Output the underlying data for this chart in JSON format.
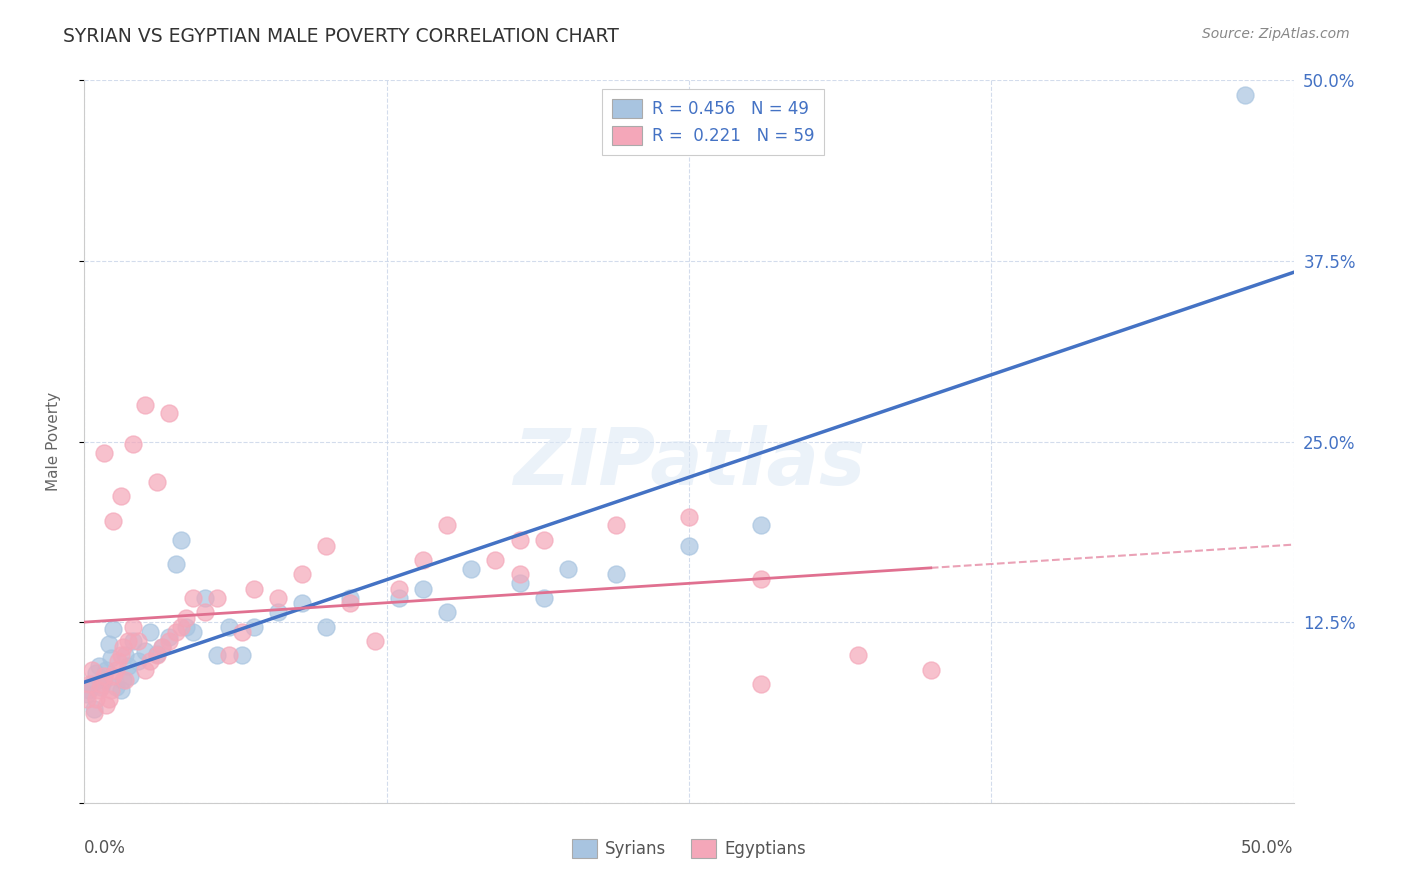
{
  "title": "SYRIAN VS EGYPTIAN MALE POVERTY CORRELATION CHART",
  "source": "Source: ZipAtlas.com",
  "ylabel": "Male Poverty",
  "xlim": [
    0.0,
    0.5
  ],
  "ylim": [
    0.0,
    0.5
  ],
  "syrian_color": "#a8c4e0",
  "egyptian_color": "#f4a7b9",
  "syrian_line_color": "#4472c4",
  "egyptian_line_color": "#e07090",
  "syrian_R": 0.456,
  "syrian_N": 49,
  "egyptian_R": 0.221,
  "egyptian_N": 59,
  "background_color": "#ffffff",
  "grid_color": "#c8d4e8",
  "watermark": "ZIPatlas",
  "syrians_x": [
    0.001,
    0.002,
    0.003,
    0.004,
    0.005,
    0.006,
    0.007,
    0.008,
    0.009,
    0.01,
    0.011,
    0.012,
    0.013,
    0.015,
    0.016,
    0.017,
    0.018,
    0.019,
    0.02,
    0.022,
    0.025,
    0.027,
    0.03,
    0.032,
    0.035,
    0.038,
    0.04,
    0.042,
    0.045,
    0.05,
    0.055,
    0.06,
    0.065,
    0.07,
    0.08,
    0.09,
    0.1,
    0.11,
    0.13,
    0.14,
    0.15,
    0.16,
    0.18,
    0.19,
    0.2,
    0.22,
    0.25,
    0.28,
    0.48
  ],
  "syrians_y": [
    0.075,
    0.078,
    0.082,
    0.065,
    0.09,
    0.095,
    0.08,
    0.085,
    0.092,
    0.11,
    0.1,
    0.12,
    0.08,
    0.078,
    0.085,
    0.102,
    0.095,
    0.088,
    0.112,
    0.098,
    0.105,
    0.118,
    0.103,
    0.108,
    0.115,
    0.165,
    0.182,
    0.122,
    0.118,
    0.142,
    0.102,
    0.122,
    0.102,
    0.122,
    0.132,
    0.138,
    0.122,
    0.142,
    0.142,
    0.148,
    0.132,
    0.162,
    0.152,
    0.142,
    0.162,
    0.158,
    0.178,
    0.192,
    0.49
  ],
  "egyptians_x": [
    0.001,
    0.002,
    0.003,
    0.004,
    0.005,
    0.006,
    0.007,
    0.008,
    0.009,
    0.01,
    0.011,
    0.012,
    0.013,
    0.014,
    0.015,
    0.016,
    0.017,
    0.018,
    0.02,
    0.022,
    0.025,
    0.027,
    0.03,
    0.032,
    0.035,
    0.038,
    0.04,
    0.042,
    0.045,
    0.05,
    0.055,
    0.06,
    0.065,
    0.07,
    0.08,
    0.09,
    0.1,
    0.11,
    0.12,
    0.13,
    0.14,
    0.15,
    0.17,
    0.19,
    0.22,
    0.25,
    0.28,
    0.32,
    0.35,
    0.18,
    0.008,
    0.012,
    0.015,
    0.02,
    0.025,
    0.03,
    0.035,
    0.18,
    0.28
  ],
  "egyptians_y": [
    0.072,
    0.082,
    0.092,
    0.062,
    0.072,
    0.078,
    0.082,
    0.088,
    0.068,
    0.072,
    0.078,
    0.088,
    0.092,
    0.098,
    0.102,
    0.108,
    0.085,
    0.112,
    0.122,
    0.112,
    0.092,
    0.098,
    0.102,
    0.108,
    0.112,
    0.118,
    0.122,
    0.128,
    0.142,
    0.132,
    0.142,
    0.102,
    0.118,
    0.148,
    0.142,
    0.158,
    0.178,
    0.138,
    0.112,
    0.148,
    0.168,
    0.192,
    0.168,
    0.182,
    0.192,
    0.198,
    0.082,
    0.102,
    0.092,
    0.182,
    0.242,
    0.195,
    0.212,
    0.248,
    0.275,
    0.222,
    0.27,
    0.158,
    0.155
  ]
}
